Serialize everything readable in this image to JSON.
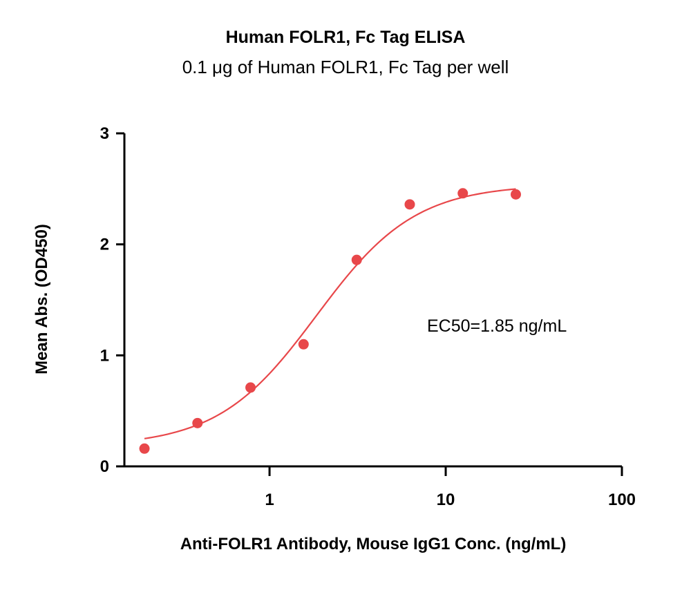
{
  "chart_data": {
    "type": "scatter",
    "title": "Human FOLR1, Fc Tag ELISA",
    "subtitle": "0.1 μg of Human FOLR1, Fc Tag per well",
    "xlabel": "Anti-FOLR1 Antibody, Mouse IgG1 Conc. (ng/mL)",
    "ylabel": "Mean Abs. (OD450)",
    "x_scale": "log",
    "xlim": [
      0.15,
      100
    ],
    "ylim": [
      0,
      3
    ],
    "x_ticks": [
      {
        "value": 1,
        "label": "1"
      },
      {
        "value": 10,
        "label": "10"
      },
      {
        "value": 100,
        "label": "100"
      }
    ],
    "y_ticks": [
      {
        "value": 0,
        "label": "0"
      },
      {
        "value": 1,
        "label": "1"
      },
      {
        "value": 2,
        "label": "2"
      },
      {
        "value": 3,
        "label": "3"
      }
    ],
    "annotation": "EC50=1.85 ng/mL",
    "series": [
      {
        "x": [
          0.195,
          0.39,
          0.78,
          1.56,
          3.125,
          6.25,
          12.5,
          25
        ],
        "y": [
          0.16,
          0.39,
          0.71,
          1.1,
          1.86,
          2.36,
          2.46,
          2.45
        ],
        "fit": {
          "bottom": 0.18,
          "top": 2.54,
          "ec50": 1.85,
          "hill": 1.55
        }
      }
    ],
    "colors": {
      "series": "#e8474a",
      "axis": "#000000"
    },
    "grid": false
  }
}
